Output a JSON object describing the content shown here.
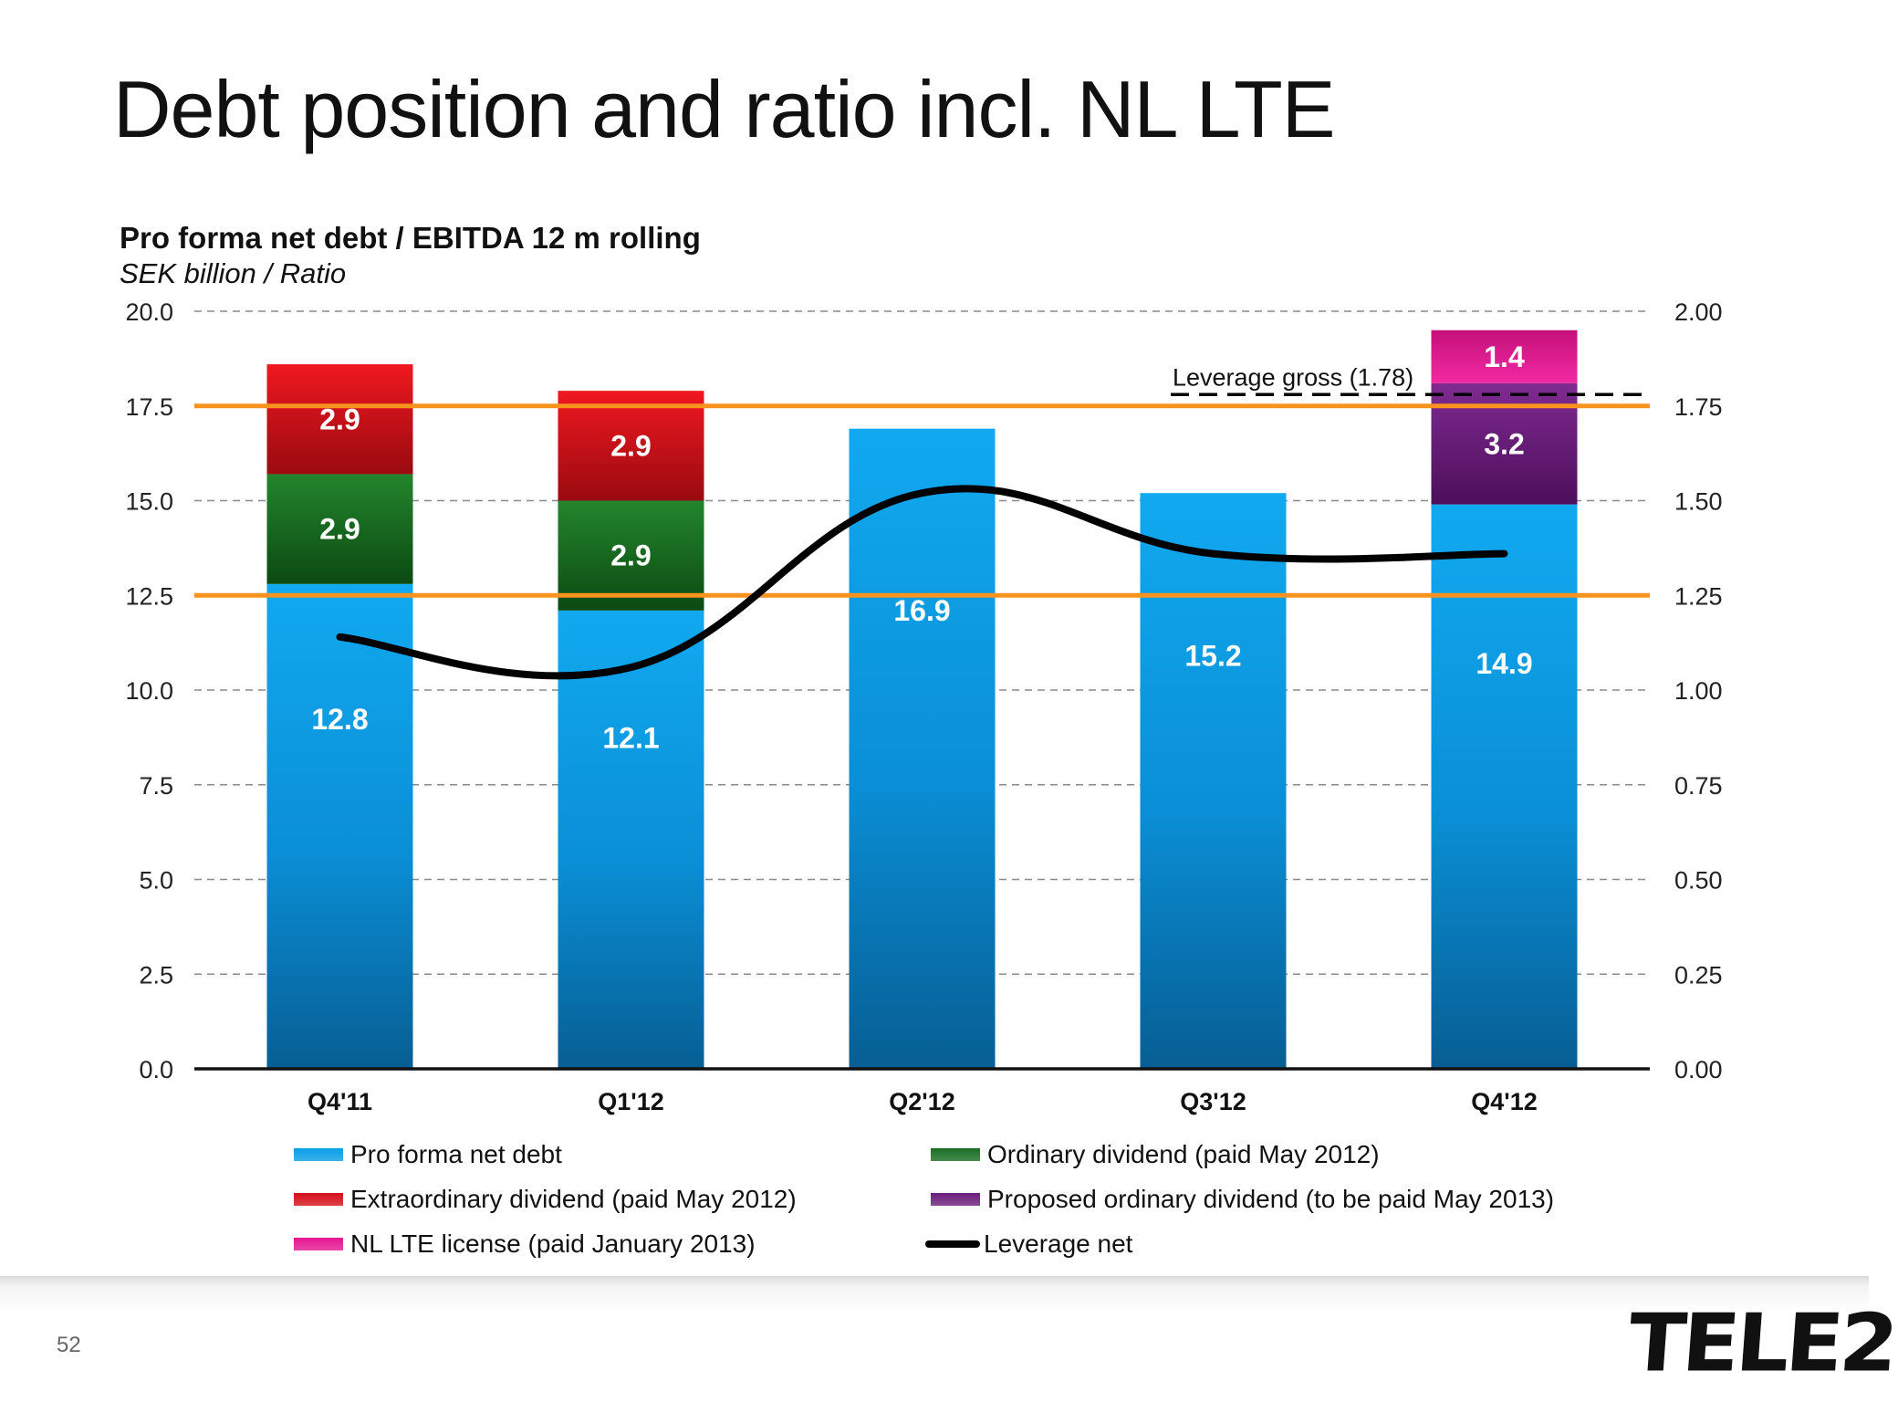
{
  "slide": {
    "title": "Debt position and ratio incl. NL LTE",
    "page_number": "52",
    "logo_text": "TELE2"
  },
  "chart_data": {
    "type": "bar",
    "stacked": true,
    "title": "Pro forma net debt / EBITDA 12 m rolling",
    "subtitle": "SEK billion / Ratio",
    "categories": [
      "Q4'11",
      "Q1'12",
      "Q2'12",
      "Q3'12",
      "Q4'12"
    ],
    "y_left": {
      "min": 0,
      "max": 20,
      "ticks": [
        "0.0",
        "2.5",
        "5.0",
        "7.5",
        "10.0",
        "12.5",
        "15.0",
        "17.5",
        "20.0"
      ]
    },
    "y_right": {
      "min": 0,
      "max": 2,
      "ticks": [
        "0.00",
        "0.25",
        "0.50",
        "0.75",
        "1.00",
        "1.25",
        "1.50",
        "1.75",
        "2.00"
      ]
    },
    "grid": "dashed horizontal",
    "series": [
      {
        "name": "Pro forma net debt",
        "color": "#0b9ee6",
        "values": [
          12.8,
          12.1,
          16.9,
          15.2,
          14.9
        ],
        "labels": [
          "12.8",
          "12.1",
          "16.9",
          "15.2",
          "14.9"
        ]
      },
      {
        "name": "Ordinary dividend (paid May 2012)",
        "color": "#1a6e24",
        "values": [
          2.9,
          2.9,
          0,
          0,
          0
        ],
        "labels": [
          "2.9",
          "2.9",
          "",
          "",
          ""
        ]
      },
      {
        "name": "Extraordinary dividend (paid May 2012)",
        "color": "#d3101a",
        "values": [
          2.9,
          2.9,
          0,
          0,
          0
        ],
        "labels": [
          "2.9",
          "2.9",
          "",
          "",
          ""
        ]
      },
      {
        "name": "Proposed ordinary dividend (to be paid May 2013)",
        "color": "#6a1d7a",
        "values": [
          0,
          0,
          0,
          0,
          3.2
        ],
        "labels": [
          "",
          "",
          "",
          "",
          "3.2"
        ]
      },
      {
        "name": "NL LTE license (paid January 2013)",
        "color": "#e4178f",
        "values": [
          0,
          0,
          0,
          0,
          1.4
        ],
        "labels": [
          "",
          "",
          "",
          "",
          "1.4"
        ]
      }
    ],
    "line_series": {
      "name": "Leverage net",
      "axis": "right",
      "color": "#000000",
      "values": [
        1.14,
        1.06,
        1.52,
        1.36,
        1.36
      ]
    },
    "reference_lines": [
      {
        "axis": "left",
        "value": 17.5,
        "color": "#f7931e"
      },
      {
        "axis": "left",
        "value": 12.5,
        "color": "#f7931e"
      }
    ],
    "annotation": {
      "text": "Leverage  gross (1.78)",
      "axis": "right",
      "value": 1.78
    },
    "legend": [
      {
        "label": "Pro forma net debt",
        "color": "#0b9ee6",
        "kind": "bar"
      },
      {
        "label": "Ordinary dividend (paid May 2012)",
        "color": "#1a6e24",
        "kind": "bar"
      },
      {
        "label": "Extraordinary dividend (paid May 2012)",
        "color": "#d3101a",
        "kind": "bar"
      },
      {
        "label": "Proposed ordinary dividend (to be paid May 2013)",
        "color": "#6a1d7a",
        "kind": "bar"
      },
      {
        "label": "NL LTE license (paid January 2013)",
        "color": "#e4178f",
        "kind": "bar"
      },
      {
        "label": "Leverage net",
        "color": "#000000",
        "kind": "line"
      }
    ],
    "legend_placement": "bottom"
  }
}
